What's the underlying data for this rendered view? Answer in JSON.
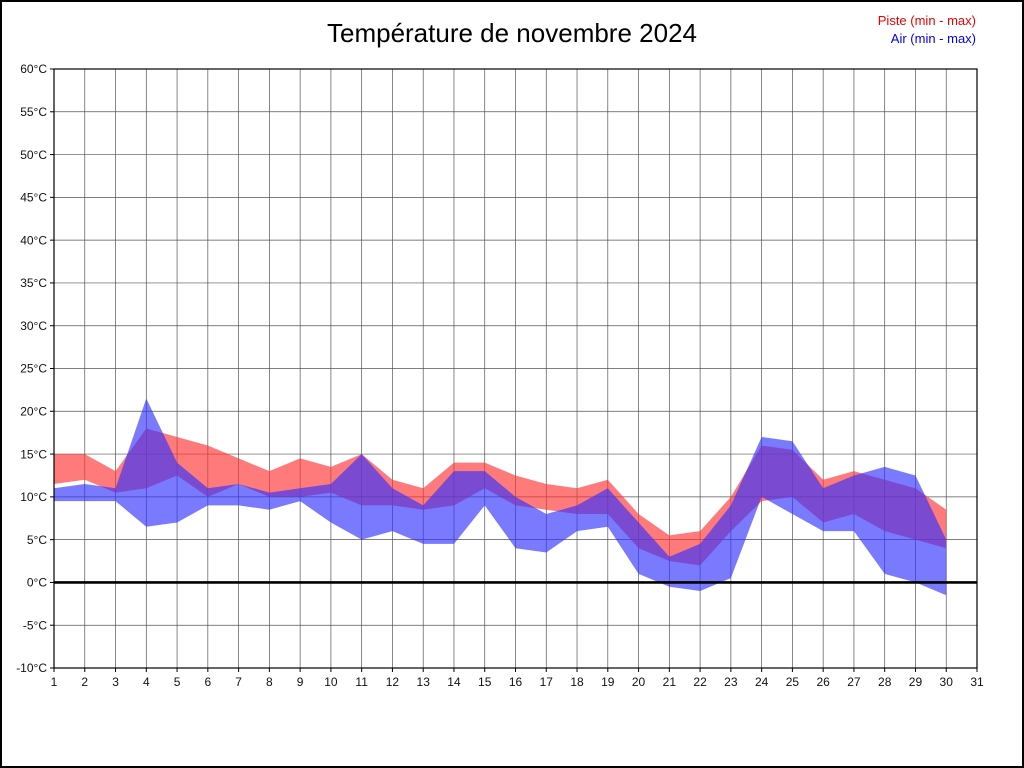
{
  "chart_data": {
    "type": "area",
    "title": "Température de novembre 2024",
    "xlabel": "",
    "ylabel": "",
    "x": [
      1,
      2,
      3,
      4,
      5,
      6,
      7,
      8,
      9,
      10,
      11,
      12,
      13,
      14,
      15,
      16,
      17,
      18,
      19,
      20,
      21,
      22,
      23,
      24,
      25,
      26,
      27,
      28,
      29,
      30
    ],
    "xlim": [
      1,
      31
    ],
    "ylim": [
      -10,
      60
    ],
    "ytick_step": 5,
    "ytick_suffix": "°C",
    "grid": true,
    "zero_line": true,
    "legend_position": "top-right",
    "legend": [
      {
        "label": "Piste (min - max)",
        "color": "#ee0000"
      },
      {
        "label": "Air (min - max)",
        "color": "#0000ee"
      }
    ],
    "series": [
      {
        "name": "Piste",
        "color": "#ff3232",
        "opacity": 0.65,
        "min": [
          11.5,
          12,
          10.5,
          11,
          12.5,
          10,
          11.5,
          10,
          10,
          10.5,
          9,
          9,
          8.5,
          9,
          11,
          9,
          8.5,
          8,
          8,
          4,
          2.5,
          2,
          6,
          9.5,
          10,
          7,
          8,
          6,
          5,
          4
        ],
        "max": [
          15,
          15,
          13,
          18,
          17,
          16,
          14.5,
          13,
          14.5,
          13.5,
          15,
          12,
          11,
          14,
          14,
          12.5,
          11.5,
          11,
          12,
          8,
          5.5,
          6,
          10,
          16,
          15.5,
          12,
          13,
          12,
          11,
          8.5
        ]
      },
      {
        "name": "Air",
        "color": "#3232ff",
        "opacity": 0.65,
        "min": [
          9.5,
          9.5,
          9.5,
          6.5,
          7,
          9,
          9,
          8.5,
          9.5,
          7,
          5,
          6,
          4.5,
          4.5,
          9,
          4,
          3.5,
          6,
          6.5,
          1,
          -0.5,
          -1,
          0.5,
          10,
          8,
          6,
          6,
          1,
          0,
          -1.5
        ],
        "max": [
          11,
          11.5,
          11,
          21.5,
          14,
          11,
          11.5,
          10.5,
          11,
          11.5,
          15,
          11,
          9,
          13,
          13,
          10,
          8,
          9,
          11,
          7,
          3,
          4.5,
          9,
          17,
          16.5,
          11,
          12.5,
          13.5,
          12.5,
          5
        ]
      }
    ]
  }
}
